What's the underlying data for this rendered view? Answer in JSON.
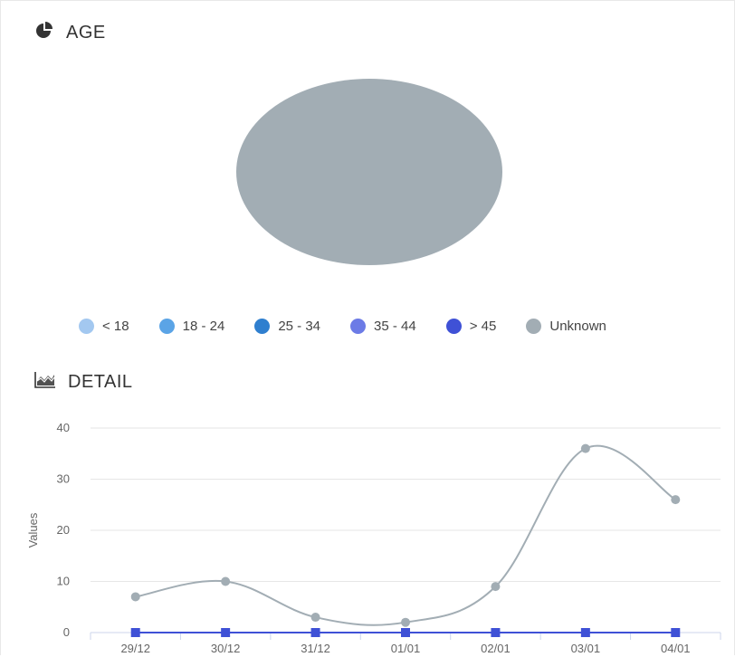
{
  "age_section": {
    "title": "AGE",
    "icon": "pie-chart-icon"
  },
  "detail_section": {
    "title": "DETAIL",
    "icon": "area-chart-icon"
  },
  "chart_data": [
    {
      "type": "pie",
      "categories": [
        "< 18",
        "18 - 24",
        "25 - 34",
        "35 - 44",
        "> 45",
        "Unknown"
      ],
      "values": [
        0,
        0,
        0,
        0,
        0,
        100
      ],
      "colors": [
        "#a3c8f0",
        "#5ba4e6",
        "#2f7fcf",
        "#6c7be6",
        "#3f51d6",
        "#a2adb4"
      ],
      "legend_position": "bottom"
    },
    {
      "type": "line",
      "categories": [
        "29/12",
        "30/12",
        "31/12",
        "01/01",
        "02/01",
        "03/01",
        "04/01"
      ],
      "ylabel": "Values",
      "ylim": [
        0,
        40
      ],
      "yticks": [
        0,
        10,
        20,
        30,
        40
      ],
      "grid": true,
      "series": [
        {
          "values": [
            7,
            10,
            3,
            2,
            9,
            36,
            26
          ],
          "color": "#a2adb4",
          "marker": "circle"
        },
        {
          "values": [
            0,
            0,
            0,
            0,
            0,
            0,
            0
          ],
          "color": "#3f51d6",
          "marker": "square"
        }
      ]
    }
  ]
}
